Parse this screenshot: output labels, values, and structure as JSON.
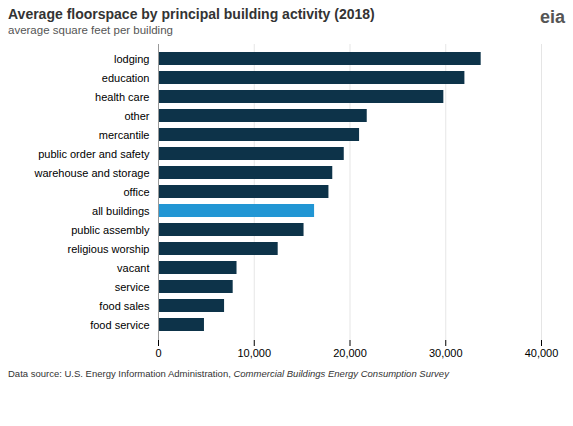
{
  "chart_data": {
    "type": "bar",
    "orientation": "horizontal",
    "title": "Average floorspace by principal building activity (2018)",
    "subtitle": "average square feet per building",
    "annotation": "eia",
    "footnote": "Data source: U.S. Energy Information Administration, ",
    "footnote_italic": "Commercial Buildings Energy Consumption Survey",
    "categories": [
      "lodging",
      "education",
      "health care",
      "other",
      "mercantile",
      "public order and safety",
      "warehouse and storage",
      "office",
      "all buildings",
      "public assembly",
      "religious worship",
      "vacant",
      "service",
      "food sales",
      "food service"
    ],
    "values": [
      33700,
      32000,
      29800,
      21800,
      21000,
      19400,
      18200,
      17800,
      16300,
      15200,
      12500,
      8200,
      7800,
      6900,
      4800
    ],
    "colors": [
      "#0d3349",
      "#0d3349",
      "#0d3349",
      "#0d3349",
      "#0d3349",
      "#0d3349",
      "#0d3349",
      "#0d3349",
      "#2196d4",
      "#0d3349",
      "#0d3349",
      "#0d3349",
      "#0d3349",
      "#0d3349",
      "#0d3349"
    ],
    "xlim": [
      0,
      40000
    ],
    "xticks": [
      0,
      {
        "value": 10000,
        "label": "10,000"
      },
      {
        "value": 20000,
        "label": "20,000"
      },
      {
        "value": 30000,
        "label": "30,000"
      },
      {
        "value": 40000,
        "label": "40,000"
      }
    ],
    "grid": true
  }
}
